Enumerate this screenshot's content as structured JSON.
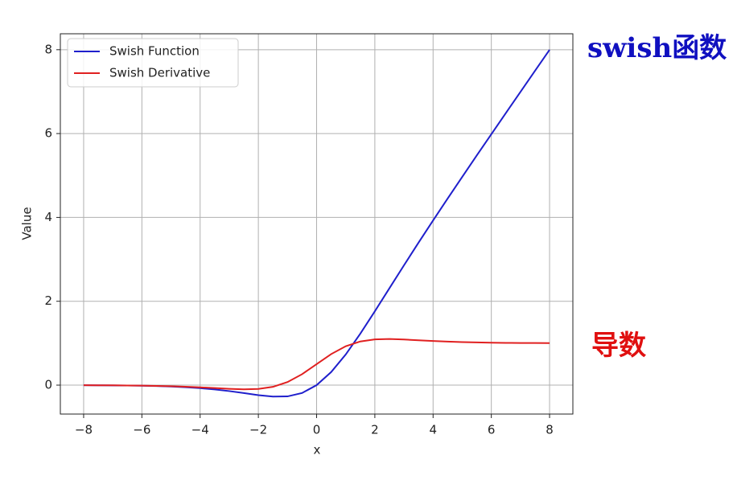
{
  "chart_data": {
    "type": "line",
    "x_label": "x",
    "y_label": "Value",
    "x": [
      -8,
      -7.5,
      -7,
      -6.5,
      -6,
      -5.5,
      -5,
      -4.5,
      -4,
      -3.5,
      -3,
      -2.5,
      -2,
      -1.5,
      -1,
      -0.5,
      0,
      0.5,
      1,
      1.5,
      2,
      2.5,
      3,
      3.5,
      4,
      4.5,
      5,
      5.5,
      6,
      6.5,
      7,
      7.5,
      8
    ],
    "series": [
      {
        "name": "Swish Function",
        "color": "#1f1fcc",
        "values": [
          -0.0027,
          -0.0041,
          -0.0064,
          -0.0098,
          -0.0148,
          -0.0224,
          -0.0335,
          -0.0495,
          -0.0719,
          -0.1026,
          -0.1423,
          -0.1896,
          -0.2384,
          -0.2736,
          -0.2689,
          -0.1888,
          0,
          0.3112,
          0.7311,
          1.2264,
          1.7616,
          2.3104,
          2.8577,
          3.3974,
          3.9281,
          4.4505,
          4.9665,
          5.4776,
          5.9852,
          6.4902,
          6.9936,
          7.4959,
          7.9973
        ]
      },
      {
        "name": "Swish Derivative",
        "color": "#e02020",
        "values": [
          -0.0024,
          -0.0036,
          -0.0055,
          -0.0082,
          -0.0123,
          -0.0182,
          -0.0266,
          -0.0379,
          -0.0527,
          -0.0703,
          -0.0881,
          -0.0994,
          -0.0908,
          -0.0413,
          0.0723,
          0.26,
          0.5,
          0.74,
          0.9277,
          1.0413,
          1.0908,
          1.0994,
          1.0881,
          1.0703,
          1.0527,
          1.0379,
          1.0266,
          1.0182,
          1.0123,
          1.0082,
          1.0055,
          1.0036,
          1.0024
        ]
      }
    ],
    "xlim": [
      -8.8,
      8.8
    ],
    "ylim": [
      -0.69,
      8.38
    ],
    "xticks": [
      {
        "value": -8,
        "label": "−8"
      },
      {
        "value": -6,
        "label": "−6"
      },
      {
        "value": -4,
        "label": "−4"
      },
      {
        "value": -2,
        "label": "−2"
      },
      0,
      2,
      4,
      6,
      8
    ],
    "yticks": [
      0,
      2,
      4,
      6,
      8
    ],
    "grid": true,
    "legend": "upper-left",
    "annotations": [
      {
        "text": "swish函数",
        "color": "#1010c0"
      },
      {
        "text": "导数",
        "color": "#e01010"
      }
    ]
  }
}
